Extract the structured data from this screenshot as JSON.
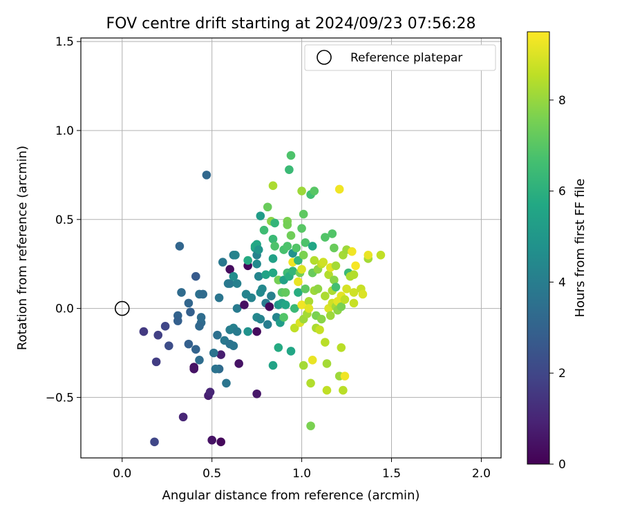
{
  "chart_data": {
    "type": "scatter",
    "title": "FOV centre drift starting at 2024/09/23 07:56:28",
    "xlabel": "Angular distance from reference (arcmin)",
    "ylabel": "Rotation from reference (arcmin)",
    "xlim": [
      -0.23,
      2.11
    ],
    "ylim": [
      -0.84,
      1.52
    ],
    "xticks": [
      0.0,
      0.5,
      1.0,
      1.5,
      2.0
    ],
    "xtick_labels": [
      "0.0",
      "0.5",
      "1.0",
      "1.5",
      "2.0"
    ],
    "yticks": [
      -0.5,
      0.0,
      0.5,
      1.0,
      1.5
    ],
    "ytick_labels": [
      "−0.5",
      "0.0",
      "0.5",
      "1.0",
      "1.5"
    ],
    "grid": true,
    "legend": {
      "position": "top-right",
      "label": "Reference platepar"
    },
    "reference_point": {
      "x": 0.0,
      "y": 0.0
    },
    "colorbar": {
      "label": "Hours from first FF file",
      "range": [
        0,
        9.5
      ],
      "ticks": [
        0,
        2,
        4,
        6,
        8
      ],
      "colormap": "viridis"
    },
    "points": [
      {
        "x": 0.47,
        "y": 0.75,
        "h": 3.2
      },
      {
        "x": 0.32,
        "y": 0.35,
        "h": 3.1
      },
      {
        "x": 0.43,
        "y": 0.08,
        "h": 3.5
      },
      {
        "x": 0.41,
        "y": 0.18,
        "h": 2.7
      },
      {
        "x": 0.45,
        "y": 0.08,
        "h": 3.3
      },
      {
        "x": 0.33,
        "y": 0.09,
        "h": 3.3
      },
      {
        "x": 0.37,
        "y": 0.03,
        "h": 3.1
      },
      {
        "x": 0.38,
        "y": -0.02,
        "h": 2.9
      },
      {
        "x": 0.31,
        "y": -0.04,
        "h": 3.0
      },
      {
        "x": 0.31,
        "y": -0.07,
        "h": 2.9
      },
      {
        "x": 0.24,
        "y": -0.1,
        "h": 2.0
      },
      {
        "x": 0.12,
        "y": -0.13,
        "h": 1.6
      },
      {
        "x": 0.2,
        "y": -0.15,
        "h": 1.8
      },
      {
        "x": 0.26,
        "y": -0.21,
        "h": 2.2
      },
      {
        "x": 0.19,
        "y": -0.3,
        "h": 1.7
      },
      {
        "x": 0.37,
        "y": -0.2,
        "h": 2.9
      },
      {
        "x": 0.41,
        "y": -0.23,
        "h": 3.0
      },
      {
        "x": 0.44,
        "y": -0.08,
        "h": 3.3
      },
      {
        "x": 0.44,
        "y": -0.05,
        "h": 3.4
      },
      {
        "x": 0.43,
        "y": -0.1,
        "h": 3.2
      },
      {
        "x": 0.43,
        "y": -0.29,
        "h": 3.4
      },
      {
        "x": 0.4,
        "y": -0.33,
        "h": 0.4
      },
      {
        "x": 0.4,
        "y": -0.34,
        "h": 0.5
      },
      {
        "x": 0.48,
        "y": -0.49,
        "h": 0.8
      },
      {
        "x": 0.49,
        "y": -0.47,
        "h": 1.0
      },
      {
        "x": 0.34,
        "y": -0.61,
        "h": 1.0
      },
      {
        "x": 0.18,
        "y": -0.75,
        "h": 2.0
      },
      {
        "x": 0.5,
        "y": -0.74,
        "h": 0.5
      },
      {
        "x": 0.55,
        "y": -0.75,
        "h": 0.2
      },
      {
        "x": 0.55,
        "y": -0.26,
        "h": 0.8
      },
      {
        "x": 0.54,
        "y": -0.34,
        "h": 3.3
      },
      {
        "x": 0.52,
        "y": -0.34,
        "h": 3.6
      },
      {
        "x": 0.58,
        "y": -0.42,
        "h": 3.7
      },
      {
        "x": 0.53,
        "y": -0.15,
        "h": 3.5
      },
      {
        "x": 0.57,
        "y": -0.18,
        "h": 3.8
      },
      {
        "x": 0.6,
        "y": -0.2,
        "h": 3.6
      },
      {
        "x": 0.62,
        "y": -0.21,
        "h": 3.7
      },
      {
        "x": 0.51,
        "y": -0.25,
        "h": 3.6
      },
      {
        "x": 0.54,
        "y": 0.06,
        "h": 3.7
      },
      {
        "x": 0.56,
        "y": 0.26,
        "h": 3.8
      },
      {
        "x": 0.59,
        "y": 0.14,
        "h": 3.9
      },
      {
        "x": 0.6,
        "y": 0.14,
        "h": 3.8
      },
      {
        "x": 0.6,
        "y": 0.22,
        "h": 0.3
      },
      {
        "x": 0.62,
        "y": 0.3,
        "h": 4.0
      },
      {
        "x": 0.63,
        "y": 0.3,
        "h": 4.2
      },
      {
        "x": 0.64,
        "y": 0.14,
        "h": 4.1
      },
      {
        "x": 0.62,
        "y": 0.18,
        "h": 4.6
      },
      {
        "x": 0.6,
        "y": -0.12,
        "h": 4.0
      },
      {
        "x": 0.62,
        "y": -0.11,
        "h": 4.1
      },
      {
        "x": 0.64,
        "y": -0.13,
        "h": 3.9
      },
      {
        "x": 0.65,
        "y": -0.31,
        "h": 0.5
      },
      {
        "x": 0.64,
        "y": 0.0,
        "h": 3.9
      },
      {
        "x": 0.68,
        "y": 0.02,
        "h": 0.4
      },
      {
        "x": 0.69,
        "y": 0.08,
        "h": 4.2
      },
      {
        "x": 0.7,
        "y": -0.13,
        "h": 4.8
      },
      {
        "x": 0.7,
        "y": 0.24,
        "h": 0.2
      },
      {
        "x": 0.7,
        "y": 0.27,
        "h": 5.8
      },
      {
        "x": 0.72,
        "y": 0.06,
        "h": 4.2
      },
      {
        "x": 0.74,
        "y": 0.34,
        "h": 5.2
      },
      {
        "x": 0.74,
        "y": 0.35,
        "h": 5.7
      },
      {
        "x": 0.75,
        "y": 0.3,
        "h": 4.2
      },
      {
        "x": 0.75,
        "y": 0.36,
        "h": 5.6
      },
      {
        "x": 0.76,
        "y": 0.33,
        "h": 4.9
      },
      {
        "x": 0.75,
        "y": 0.25,
        "h": 4.5
      },
      {
        "x": 0.77,
        "y": 0.52,
        "h": 5.2
      },
      {
        "x": 0.75,
        "y": -0.05,
        "h": 4.4
      },
      {
        "x": 0.75,
        "y": -0.13,
        "h": 0.3
      },
      {
        "x": 0.75,
        "y": -0.48,
        "h": 0.6
      },
      {
        "x": 0.76,
        "y": 0.18,
        "h": 4.3
      },
      {
        "x": 0.77,
        "y": -0.06,
        "h": 4.2
      },
      {
        "x": 0.77,
        "y": 0.09,
        "h": 4.5
      },
      {
        "x": 0.78,
        "y": 0.11,
        "h": 4.4
      },
      {
        "x": 0.8,
        "y": 0.03,
        "h": 3.9
      },
      {
        "x": 0.79,
        "y": 0.44,
        "h": 6.5
      },
      {
        "x": 0.81,
        "y": 0.57,
        "h": 7.3
      },
      {
        "x": 0.8,
        "y": 0.19,
        "h": 5.5
      },
      {
        "x": 0.81,
        "y": -0.09,
        "h": 4.0
      },
      {
        "x": 0.82,
        "y": 0.01,
        "h": 0.2
      },
      {
        "x": 0.83,
        "y": 0.07,
        "h": 4.1
      },
      {
        "x": 0.83,
        "y": 0.49,
        "h": 7.8
      },
      {
        "x": 0.84,
        "y": 0.69,
        "h": 8.3
      },
      {
        "x": 0.84,
        "y": 0.39,
        "h": 6.4
      },
      {
        "x": 0.84,
        "y": 0.28,
        "h": 5.4
      },
      {
        "x": 0.84,
        "y": 0.2,
        "h": 5.7
      },
      {
        "x": 0.84,
        "y": -0.32,
        "h": 5.5
      },
      {
        "x": 0.85,
        "y": 0.48,
        "h": 6.2
      },
      {
        "x": 0.85,
        "y": 0.35,
        "h": 6.8
      },
      {
        "x": 0.86,
        "y": -0.05,
        "h": 4.3
      },
      {
        "x": 0.87,
        "y": 0.16,
        "h": 7.5
      },
      {
        "x": 0.87,
        "y": -0.22,
        "h": 5.8
      },
      {
        "x": 0.87,
        "y": 0.02,
        "h": 5.0
      },
      {
        "x": 0.88,
        "y": -0.08,
        "h": 5.2
      },
      {
        "x": 0.89,
        "y": 0.09,
        "h": 7.0
      },
      {
        "x": 0.89,
        "y": 0.03,
        "h": 5.3
      },
      {
        "x": 0.9,
        "y": 0.33,
        "h": 6.7
      },
      {
        "x": 0.9,
        "y": 0.16,
        "h": 5.4
      },
      {
        "x": 0.9,
        "y": -0.05,
        "h": 6.9
      },
      {
        "x": 0.91,
        "y": 0.09,
        "h": 7.2
      },
      {
        "x": 0.91,
        "y": 0.02,
        "h": 5.6
      },
      {
        "x": 0.92,
        "y": 0.49,
        "h": 7.6
      },
      {
        "x": 0.92,
        "y": 0.47,
        "h": 7.5
      },
      {
        "x": 0.92,
        "y": 0.35,
        "h": 6.8
      },
      {
        "x": 0.92,
        "y": 0.2,
        "h": 6.5
      },
      {
        "x": 0.93,
        "y": 0.18,
        "h": 5.9
      },
      {
        "x": 0.93,
        "y": 0.78,
        "h": 6.4
      },
      {
        "x": 0.94,
        "y": 0.86,
        "h": 6.8
      },
      {
        "x": 0.94,
        "y": 0.41,
        "h": 7.4
      },
      {
        "x": 0.94,
        "y": -0.24,
        "h": 5.6
      },
      {
        "x": 0.95,
        "y": 0.26,
        "h": 9.3
      },
      {
        "x": 0.95,
        "y": 0.31,
        "h": 4.8
      },
      {
        "x": 0.95,
        "y": 0.21,
        "h": 6.2
      },
      {
        "x": 0.96,
        "y": -0.11,
        "h": 8.6
      },
      {
        "x": 0.96,
        "y": 0.0,
        "h": 6.4
      },
      {
        "x": 0.97,
        "y": 0.34,
        "h": 6.9
      },
      {
        "x": 0.98,
        "y": 0.15,
        "h": 9.2
      },
      {
        "x": 0.98,
        "y": 0.27,
        "h": 6.3
      },
      {
        "x": 0.98,
        "y": 0.09,
        "h": 5.9
      },
      {
        "x": 0.99,
        "y": -0.08,
        "h": 9.0
      },
      {
        "x": 0.99,
        "y": 0.2,
        "h": 7.5
      },
      {
        "x": 1.0,
        "y": 0.66,
        "h": 8.1
      },
      {
        "x": 1.0,
        "y": 0.45,
        "h": 7.0
      },
      {
        "x": 1.0,
        "y": 0.22,
        "h": 9.0
      },
      {
        "x": 1.0,
        "y": 0.02,
        "h": 9.3
      },
      {
        "x": 1.01,
        "y": 0.53,
        "h": 7.1
      },
      {
        "x": 1.01,
        "y": 0.3,
        "h": 7.6
      },
      {
        "x": 1.01,
        "y": -0.06,
        "h": 8.1
      },
      {
        "x": 1.01,
        "y": -0.32,
        "h": 8.2
      },
      {
        "x": 1.02,
        "y": 0.11,
        "h": 7.1
      },
      {
        "x": 1.02,
        "y": 0.37,
        "h": 6.8
      },
      {
        "x": 1.03,
        "y": -0.03,
        "h": 8.2
      },
      {
        "x": 1.04,
        "y": 0.04,
        "h": 8.3
      },
      {
        "x": 1.04,
        "y": 0.0,
        "h": 9.1
      },
      {
        "x": 1.05,
        "y": 0.64,
        "h": 6.6
      },
      {
        "x": 1.05,
        "y": -0.42,
        "h": 8.4
      },
      {
        "x": 1.05,
        "y": -0.66,
        "h": 7.6
      },
      {
        "x": 1.06,
        "y": 0.2,
        "h": 7.3
      },
      {
        "x": 1.06,
        "y": -0.29,
        "h": 9.2
      },
      {
        "x": 1.06,
        "y": 0.35,
        "h": 5.6
      },
      {
        "x": 1.07,
        "y": 0.66,
        "h": 7.0
      },
      {
        "x": 1.07,
        "y": 0.1,
        "h": 8.1
      },
      {
        "x": 1.07,
        "y": 0.27,
        "h": 8.4
      },
      {
        "x": 1.08,
        "y": -0.11,
        "h": 8.3
      },
      {
        "x": 1.08,
        "y": -0.04,
        "h": 7.6
      },
      {
        "x": 1.09,
        "y": 0.11,
        "h": 7.9
      },
      {
        "x": 1.09,
        "y": 0.22,
        "h": 7.9
      },
      {
        "x": 1.1,
        "y": -0.12,
        "h": 8.7
      },
      {
        "x": 1.11,
        "y": -0.06,
        "h": 7.8
      },
      {
        "x": 1.11,
        "y": 0.25,
        "h": 8.6
      },
      {
        "x": 1.12,
        "y": 0.26,
        "h": 8.8
      },
      {
        "x": 1.13,
        "y": 0.07,
        "h": 8.3
      },
      {
        "x": 1.13,
        "y": -0.19,
        "h": 8.5
      },
      {
        "x": 1.13,
        "y": 0.4,
        "h": 6.9
      },
      {
        "x": 1.14,
        "y": -0.31,
        "h": 8.2
      },
      {
        "x": 1.14,
        "y": -0.46,
        "h": 8.6
      },
      {
        "x": 1.15,
        "y": 0.0,
        "h": 9.0
      },
      {
        "x": 1.15,
        "y": 0.19,
        "h": 8.4
      },
      {
        "x": 1.16,
        "y": -0.04,
        "h": 8.1
      },
      {
        "x": 1.16,
        "y": 0.23,
        "h": 9.1
      },
      {
        "x": 1.17,
        "y": 0.42,
        "h": 6.9
      },
      {
        "x": 1.17,
        "y": 0.03,
        "h": 8.8
      },
      {
        "x": 1.17,
        "y": 0.1,
        "h": 8.3
      },
      {
        "x": 1.18,
        "y": 0.34,
        "h": 7.3
      },
      {
        "x": 1.18,
        "y": 0.16,
        "h": 7.8
      },
      {
        "x": 1.19,
        "y": 0.24,
        "h": 8.2
      },
      {
        "x": 1.19,
        "y": 0.12,
        "h": 6.6
      },
      {
        "x": 1.19,
        "y": 0.01,
        "h": 8.2
      },
      {
        "x": 1.2,
        "y": 0.04,
        "h": 9.1
      },
      {
        "x": 1.2,
        "y": -0.01,
        "h": 7.9
      },
      {
        "x": 1.21,
        "y": -0.38,
        "h": 8.1
      },
      {
        "x": 1.21,
        "y": 0.67,
        "h": 9.3
      },
      {
        "x": 1.22,
        "y": 0.07,
        "h": 9.1
      },
      {
        "x": 1.22,
        "y": -0.22,
        "h": 8.5
      },
      {
        "x": 1.22,
        "y": 0.01,
        "h": 7.6
      },
      {
        "x": 1.23,
        "y": -0.46,
        "h": 8.5
      },
      {
        "x": 1.23,
        "y": 0.3,
        "h": 8.2
      },
      {
        "x": 1.24,
        "y": 0.05,
        "h": 8.6
      },
      {
        "x": 1.24,
        "y": -0.38,
        "h": 9.3
      },
      {
        "x": 1.25,
        "y": 0.11,
        "h": 8.9
      },
      {
        "x": 1.25,
        "y": 0.33,
        "h": 8.1
      },
      {
        "x": 1.26,
        "y": 0.2,
        "h": 6.4
      },
      {
        "x": 1.27,
        "y": 0.18,
        "h": 8.3
      },
      {
        "x": 1.28,
        "y": 0.32,
        "h": 9.3
      },
      {
        "x": 1.29,
        "y": 0.19,
        "h": 8.4
      },
      {
        "x": 1.29,
        "y": 0.09,
        "h": 8.8
      },
      {
        "x": 1.29,
        "y": 0.03,
        "h": 8.7
      },
      {
        "x": 1.3,
        "y": 0.24,
        "h": 9.4
      },
      {
        "x": 1.33,
        "y": 0.11,
        "h": 8.7
      },
      {
        "x": 1.34,
        "y": 0.08,
        "h": 9.0
      },
      {
        "x": 1.37,
        "y": 0.28,
        "h": 8.2
      },
      {
        "x": 1.37,
        "y": 0.3,
        "h": 9.2
      },
      {
        "x": 1.44,
        "y": 0.3,
        "h": 8.6
      }
    ]
  }
}
